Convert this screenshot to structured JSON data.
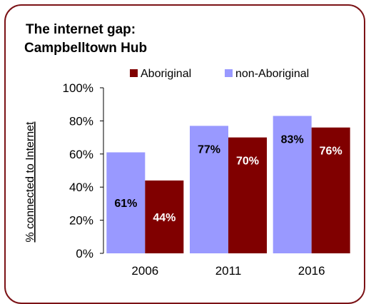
{
  "chart_data": {
    "type": "bar",
    "title_lines": [
      "The internet gap:",
      "Campbelltown Hub"
    ],
    "ylabel": "% connected to Internet",
    "xlabel": "",
    "categories": [
      "2006",
      "2011",
      "2016"
    ],
    "ylim": [
      0,
      100
    ],
    "yticks": [
      "0%",
      "20%",
      "40%",
      "60%",
      "80%",
      "100%"
    ],
    "ytick_values": [
      0,
      20,
      40,
      60,
      80,
      100
    ],
    "legend_position": "top",
    "grid": false,
    "series": [
      {
        "name": "non-Aboriginal",
        "color": "#9999ff",
        "values": [
          61,
          77,
          83
        ],
        "labels": [
          "61%",
          "77%",
          "83%"
        ]
      },
      {
        "name": "Aboriginal",
        "color": "#800000",
        "values": [
          44,
          70,
          76
        ],
        "labels": [
          "44%",
          "70%",
          "76%"
        ]
      }
    ],
    "legend_order": [
      "Aboriginal",
      "non-Aboriginal"
    ]
  },
  "colors": {
    "frame": "#7b1216"
  }
}
